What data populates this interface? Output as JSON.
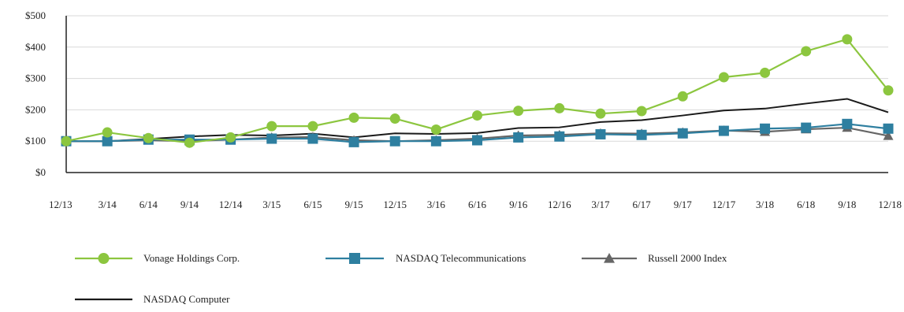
{
  "chart_data": {
    "type": "line",
    "title": "",
    "xlabel": "",
    "ylabel": "",
    "categories": [
      "12/13",
      "3/14",
      "6/14",
      "9/14",
      "12/14",
      "3/15",
      "6/15",
      "9/15",
      "12/15",
      "3/16",
      "6/16",
      "9/16",
      "12/16",
      "3/17",
      "6/17",
      "9/17",
      "12/17",
      "3/18",
      "6/18",
      "9/18",
      "12/18"
    ],
    "y_ticks": [
      "$0",
      "$100",
      "$200",
      "$300",
      "$400",
      "$500"
    ],
    "ylim": [
      0,
      500
    ],
    "grid": true,
    "legend_position": "bottom",
    "series": [
      {
        "name": "Vonage Holdings Corp.",
        "color": "#8cc63f",
        "marker": "circle",
        "values": [
          100,
          128,
          110,
          95,
          112,
          148,
          148,
          175,
          172,
          137,
          182,
          197,
          205,
          188,
          196,
          243,
          304,
          318,
          387,
          425,
          262
        ]
      },
      {
        "name": "NASDAQ Telecommunications",
        "color": "#2e7fa0",
        "marker": "square",
        "values": [
          100,
          100,
          105,
          105,
          105,
          108,
          108,
          97,
          100,
          100,
          103,
          112,
          115,
          122,
          120,
          125,
          133,
          140,
          143,
          155,
          140
        ]
      },
      {
        "name": "Russell 2000 Index",
        "color": "#666666",
        "marker": "triangle",
        "values": [
          100,
          100,
          103,
          100,
          105,
          112,
          113,
          103,
          100,
          103,
          108,
          118,
          120,
          125,
          124,
          128,
          134,
          130,
          138,
          143,
          117
        ]
      },
      {
        "name": "NASDAQ Computer",
        "color": "#1a1a1a",
        "marker": "none",
        "values": [
          100,
          100,
          107,
          115,
          120,
          118,
          124,
          112,
          125,
          123,
          126,
          142,
          144,
          161,
          167,
          182,
          198,
          204,
          220,
          235,
          192
        ]
      }
    ]
  }
}
